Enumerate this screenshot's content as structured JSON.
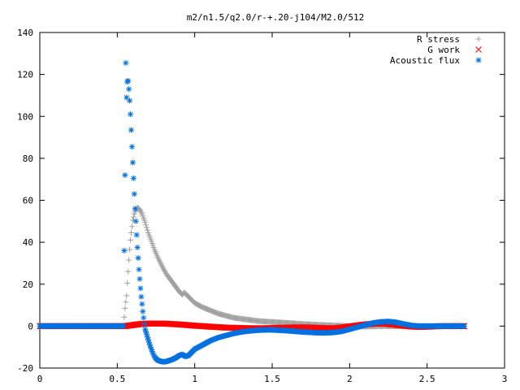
{
  "chart_data": {
    "type": "scatter",
    "title": "m2/n1.5/q2.0/r-+.20-j104/M2.0/512",
    "xlabel": "",
    "ylabel": "",
    "xlim": [
      0,
      3
    ],
    "ylim": [
      -20,
      140
    ],
    "x_ticks": [
      "0",
      "0.5",
      "1",
      "1.5",
      "2",
      "2.5",
      "3"
    ],
    "y_ticks": [
      "-20",
      "0",
      "20",
      "40",
      "60",
      "80",
      "100",
      "120",
      "140"
    ],
    "x_tick_values": [
      0,
      0.5,
      1,
      1.5,
      2,
      2.5,
      3
    ],
    "y_tick_values": [
      -20,
      0,
      20,
      40,
      60,
      80,
      100,
      120,
      140
    ],
    "grid": false,
    "legend_position": "top-right",
    "series": [
      {
        "name": "R stress",
        "marker": "plus",
        "color": "#a0a0a0",
        "points": [
          [
            0.0,
            0
          ],
          [
            0.1,
            0
          ],
          [
            0.2,
            0
          ],
          [
            0.3,
            0
          ],
          [
            0.4,
            0
          ],
          [
            0.5,
            0
          ],
          [
            0.54,
            0
          ],
          [
            0.55,
            8.5
          ],
          [
            0.56,
            14.5
          ],
          [
            0.565,
            20.5
          ],
          [
            0.57,
            26
          ],
          [
            0.575,
            31.5
          ],
          [
            0.58,
            36.5
          ],
          [
            0.585,
            41
          ],
          [
            0.59,
            44.5
          ],
          [
            0.595,
            47.5
          ],
          [
            0.6,
            50.5
          ],
          [
            0.61,
            53.5
          ],
          [
            0.62,
            55.5
          ],
          [
            0.63,
            56.5
          ],
          [
            0.64,
            56
          ],
          [
            0.65,
            55
          ],
          [
            0.66,
            53.5
          ],
          [
            0.67,
            51.5
          ],
          [
            0.68,
            49.5
          ],
          [
            0.69,
            47
          ],
          [
            0.7,
            44.5
          ],
          [
            0.72,
            40.5
          ],
          [
            0.74,
            36.5
          ],
          [
            0.76,
            33
          ],
          [
            0.78,
            30
          ],
          [
            0.8,
            27
          ],
          [
            0.82,
            24.5
          ],
          [
            0.84,
            22.5
          ],
          [
            0.86,
            20.5
          ],
          [
            0.88,
            18.5
          ],
          [
            0.9,
            16.5
          ],
          [
            0.92,
            15
          ],
          [
            0.93,
            16
          ],
          [
            0.94,
            15.5
          ],
          [
            0.96,
            14
          ],
          [
            0.98,
            12.5
          ],
          [
            1.0,
            11
          ],
          [
            1.05,
            9
          ],
          [
            1.1,
            7.5
          ],
          [
            1.15,
            6
          ],
          [
            1.2,
            5
          ],
          [
            1.25,
            4
          ],
          [
            1.3,
            3.5
          ],
          [
            1.35,
            3
          ],
          [
            1.4,
            2.5
          ],
          [
            1.45,
            2.2
          ],
          [
            1.5,
            2
          ],
          [
            1.6,
            1.5
          ],
          [
            1.7,
            1
          ],
          [
            1.8,
            0.6
          ],
          [
            1.9,
            0.3
          ],
          [
            2.0,
            0
          ],
          [
            2.1,
            -0.2
          ],
          [
            2.2,
            0
          ],
          [
            2.3,
            0
          ],
          [
            2.4,
            0
          ],
          [
            2.5,
            0
          ],
          [
            2.6,
            0
          ],
          [
            2.7,
            0
          ],
          [
            2.74,
            0
          ]
        ]
      },
      {
        "name": "G work",
        "marker": "cross",
        "color": "#ff0000",
        "points": [
          [
            0.0,
            0
          ],
          [
            0.1,
            0
          ],
          [
            0.2,
            0
          ],
          [
            0.3,
            0
          ],
          [
            0.4,
            0
          ],
          [
            0.5,
            0
          ],
          [
            0.55,
            0
          ],
          [
            0.6,
            0.5
          ],
          [
            0.65,
            1
          ],
          [
            0.7,
            1.2
          ],
          [
            0.75,
            1.2
          ],
          [
            0.8,
            1.2
          ],
          [
            0.85,
            1
          ],
          [
            0.9,
            0.8
          ],
          [
            0.95,
            0.5
          ],
          [
            1.0,
            0.2
          ],
          [
            1.05,
            0
          ],
          [
            1.1,
            -0.3
          ],
          [
            1.15,
            -0.5
          ],
          [
            1.2,
            -0.7
          ],
          [
            1.25,
            -0.8
          ],
          [
            1.3,
            -0.9
          ],
          [
            1.35,
            -1
          ],
          [
            1.4,
            -1
          ],
          [
            1.45,
            -1
          ],
          [
            1.5,
            -0.9
          ],
          [
            1.55,
            -0.8
          ],
          [
            1.6,
            -0.7
          ],
          [
            1.65,
            -0.6
          ],
          [
            1.7,
            -0.6
          ],
          [
            1.75,
            -0.7
          ],
          [
            1.8,
            -0.9
          ],
          [
            1.85,
            -1
          ],
          [
            1.9,
            -1
          ],
          [
            1.95,
            -0.7
          ],
          [
            2.0,
            -0.2
          ],
          [
            2.05,
            0.3
          ],
          [
            2.1,
            0.8
          ],
          [
            2.15,
            1.1
          ],
          [
            2.2,
            1.2
          ],
          [
            2.25,
            1
          ],
          [
            2.3,
            0.6
          ],
          [
            2.35,
            0.2
          ],
          [
            2.4,
            -0.2
          ],
          [
            2.45,
            -0.4
          ],
          [
            2.5,
            -0.3
          ],
          [
            2.55,
            -0.1
          ],
          [
            2.6,
            0
          ],
          [
            2.65,
            0
          ],
          [
            2.7,
            0
          ],
          [
            2.74,
            0
          ]
        ]
      },
      {
        "name": "Acoustic flux",
        "marker": "star",
        "color": "#0070e0",
        "points": [
          [
            0.0,
            0
          ],
          [
            0.1,
            0
          ],
          [
            0.2,
            0
          ],
          [
            0.3,
            0
          ],
          [
            0.4,
            0
          ],
          [
            0.5,
            0
          ],
          [
            0.54,
            0
          ],
          [
            0.55,
            72
          ],
          [
            0.555,
            125.5
          ],
          [
            0.56,
            109
          ],
          [
            0.565,
            116.5
          ],
          [
            0.57,
            117
          ],
          [
            0.575,
            113
          ],
          [
            0.58,
            107.5
          ],
          [
            0.585,
            101
          ],
          [
            0.59,
            93.5
          ],
          [
            0.595,
            85.5
          ],
          [
            0.6,
            78
          ],
          [
            0.605,
            70.5
          ],
          [
            0.61,
            63
          ],
          [
            0.615,
            56
          ],
          [
            0.62,
            50
          ],
          [
            0.625,
            43.5
          ],
          [
            0.63,
            37.5
          ],
          [
            0.635,
            32.5
          ],
          [
            0.64,
            27
          ],
          [
            0.645,
            22.5
          ],
          [
            0.65,
            18
          ],
          [
            0.655,
            14
          ],
          [
            0.66,
            10.5
          ],
          [
            0.665,
            7
          ],
          [
            0.67,
            4
          ],
          [
            0.675,
            1
          ],
          [
            0.68,
            -1.5
          ],
          [
            0.69,
            -4
          ],
          [
            0.7,
            -6.5
          ],
          [
            0.71,
            -9
          ],
          [
            0.72,
            -11
          ],
          [
            0.73,
            -13
          ],
          [
            0.74,
            -14.5
          ],
          [
            0.75,
            -15.5
          ],
          [
            0.76,
            -16.2
          ],
          [
            0.78,
            -16.8
          ],
          [
            0.8,
            -17
          ],
          [
            0.82,
            -16.8
          ],
          [
            0.84,
            -16.3
          ],
          [
            0.86,
            -15.8
          ],
          [
            0.88,
            -15
          ],
          [
            0.9,
            -14
          ],
          [
            0.92,
            -13.5
          ],
          [
            0.94,
            -14.5
          ],
          [
            0.96,
            -14
          ],
          [
            0.98,
            -12.5
          ],
          [
            1.0,
            -11
          ],
          [
            1.05,
            -9
          ],
          [
            1.1,
            -7
          ],
          [
            1.15,
            -5.5
          ],
          [
            1.2,
            -4.5
          ],
          [
            1.25,
            -3.5
          ],
          [
            1.3,
            -2.8
          ],
          [
            1.35,
            -2.3
          ],
          [
            1.4,
            -2
          ],
          [
            1.45,
            -1.8
          ],
          [
            1.5,
            -1.8
          ],
          [
            1.55,
            -2
          ],
          [
            1.6,
            -2.2
          ],
          [
            1.65,
            -2.5
          ],
          [
            1.7,
            -2.8
          ],
          [
            1.75,
            -3
          ],
          [
            1.8,
            -3.2
          ],
          [
            1.85,
            -3.2
          ],
          [
            1.9,
            -3
          ],
          [
            1.95,
            -2.5
          ],
          [
            2.0,
            -1.5
          ],
          [
            2.05,
            -0.5
          ],
          [
            2.1,
            0.5
          ],
          [
            2.15,
            1.5
          ],
          [
            2.2,
            2
          ],
          [
            2.25,
            2.2
          ],
          [
            2.3,
            1.8
          ],
          [
            2.35,
            1
          ],
          [
            2.4,
            0.3
          ],
          [
            2.45,
            0
          ],
          [
            2.5,
            0
          ],
          [
            2.55,
            0
          ],
          [
            2.6,
            0
          ],
          [
            2.65,
            0
          ],
          [
            2.7,
            0
          ],
          [
            2.74,
            0
          ]
        ]
      }
    ]
  }
}
